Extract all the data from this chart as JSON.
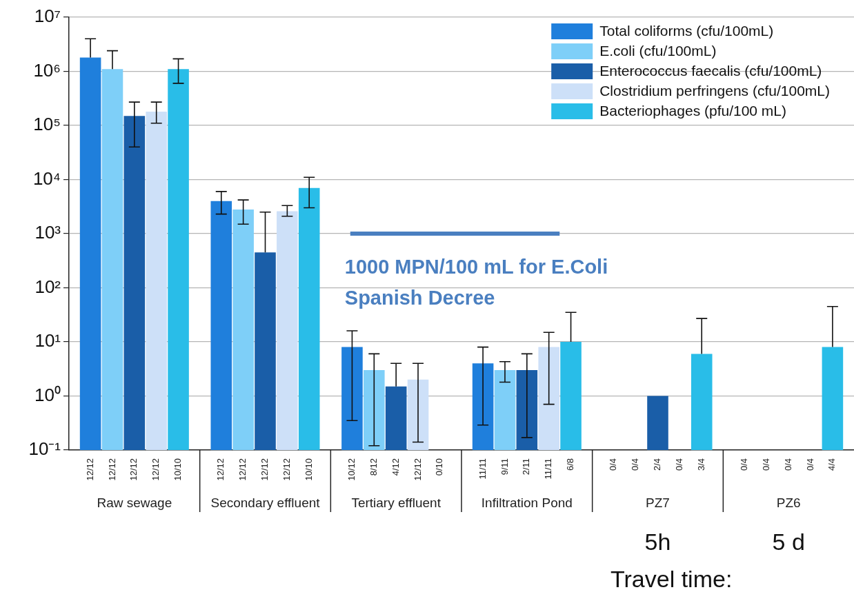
{
  "chart_data": {
    "type": "bar",
    "categories": [
      "Raw sewage",
      "Secondary effluent",
      "Tertiary effluent",
      "Infiltration Pond",
      "PZ7",
      "PZ6"
    ],
    "series": [
      {
        "name": "Total coliforms (cfu/100mL)",
        "color": "#1f7fdc",
        "values": [
          1800000,
          4000,
          8,
          4,
          null,
          null
        ],
        "errors": [
          [
            1800000,
            4000000
          ],
          [
            2300,
            6000
          ],
          [
            0.35,
            16
          ],
          [
            0.29,
            8
          ],
          null,
          null
        ]
      },
      {
        "name": "E.coli (cfu/100mL)",
        "color": "#7ecff8",
        "values": [
          1100000,
          2800,
          3,
          3,
          null,
          null
        ],
        "errors": [
          [
            1100000,
            2400000
          ],
          [
            1500,
            4200
          ],
          [
            0.12,
            6
          ],
          [
            1.8,
            4.3
          ],
          null,
          null
        ]
      },
      {
        "name": "Enterococcus faecalis (cfu/100mL)",
        "color": "#1a5ea8",
        "values": [
          150000,
          450,
          1.5,
          3,
          1,
          null
        ],
        "errors": [
          [
            40000,
            270000
          ],
          [
            450,
            2500
          ],
          [
            1.5,
            4
          ],
          [
            0.17,
            6
          ],
          null,
          null
        ]
      },
      {
        "name": "Clostridium perfringens (cfu/100mL)",
        "color": "#cde0f8",
        "values": [
          180000,
          2600,
          2,
          8,
          null,
          null
        ],
        "errors": [
          [
            110000,
            270000
          ],
          [
            2100,
            3300
          ],
          [
            0.14,
            4
          ],
          [
            0.7,
            15
          ],
          null,
          null
        ]
      },
      {
        "name": "Bacteriophages (pfu/100 mL)",
        "color": "#29bde8",
        "values": [
          1100000,
          7000,
          null,
          10,
          6,
          8
        ],
        "errors": [
          [
            600000,
            1700000
          ],
          [
            3000,
            11000
          ],
          null,
          [
            10,
            35
          ],
          [
            6,
            27
          ],
          [
            8,
            45
          ]
        ]
      }
    ],
    "log": "y",
    "ylim": [
      0.1,
      10000000
    ],
    "yticks": [
      {
        "value": 0.1,
        "label": "10⁻¹"
      },
      {
        "value": 1,
        "label": "10⁰"
      },
      {
        "value": 10,
        "label": "10¹"
      },
      {
        "value": 100,
        "label": "10²"
      },
      {
        "value": 1000,
        "label": "10³"
      },
      {
        "value": 10000,
        "label": "10⁴"
      },
      {
        "value": 100000,
        "label": "10⁵"
      },
      {
        "value": 1000000,
        "label": "10⁶"
      },
      {
        "value": 10000000,
        "label": "10⁷"
      }
    ],
    "grid": "y",
    "legend": "top right",
    "ref_lines": [
      {
        "axis": "y",
        "value": 1000,
        "label": "1000 MPN/100 mL for E.Coli Spanish Decree",
        "color": "#4a7fc0"
      }
    ],
    "annotations": [
      "12/12",
      "12/12",
      "12/12",
      "12/12",
      "10/10",
      "12/12",
      "12/12",
      "12/12",
      "12/12",
      "10/10",
      "10/12",
      "8/12",
      "4/12",
      "12/12",
      "0/10",
      "11/11",
      "9/11",
      "2/11",
      "11/11",
      "6/8",
      "0/4",
      "0/4",
      "2/4",
      "0/4",
      "3/4",
      "0/4",
      "0/4",
      "0/4",
      "0/4",
      "4/4",
      "5h",
      "5 d",
      "Travel time:"
    ]
  }
}
